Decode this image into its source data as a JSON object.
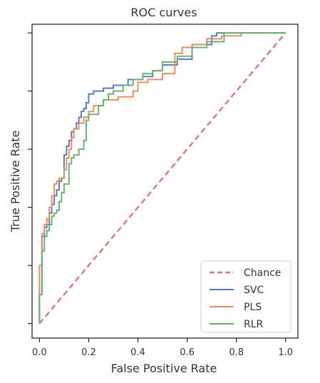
{
  "chart_data": {
    "type": "line",
    "title": "ROC curves",
    "xlabel": "False Positive Rate",
    "ylabel": "True Positive Rate",
    "xlim": [
      -0.03,
      1.05
    ],
    "ylim": [
      -0.05,
      1.03
    ],
    "x_ticks": [
      0.0,
      0.2,
      0.4,
      0.6,
      0.8,
      1.0
    ],
    "x_tick_labels": [
      "0.0",
      "0.2",
      "0.4",
      "0.6",
      "0.8",
      "1.0"
    ],
    "y_ticks": [
      0.0,
      0.2,
      0.4,
      0.6,
      0.8,
      1.0
    ],
    "y_tick_labels": [
      "",
      "",
      "",
      "",
      "",
      ""
    ],
    "grid": false,
    "legend_position": "bottom-right",
    "series": [
      {
        "name": "Chance",
        "color": "#d47a7a",
        "dashed": true,
        "x": [
          0,
          1
        ],
        "y": [
          0,
          1
        ]
      },
      {
        "name": "SVC",
        "color": "#5875b8",
        "dashed": false,
        "x": [
          0.0,
          0.0,
          0.01,
          0.01,
          0.02,
          0.02,
          0.03,
          0.03,
          0.04,
          0.04,
          0.05,
          0.05,
          0.06,
          0.06,
          0.07,
          0.07,
          0.08,
          0.08,
          0.09,
          0.09,
          0.1,
          0.1,
          0.11,
          0.11,
          0.12,
          0.12,
          0.13,
          0.13,
          0.14,
          0.14,
          0.15,
          0.15,
          0.16,
          0.16,
          0.17,
          0.17,
          0.18,
          0.18,
          0.19,
          0.19,
          0.2,
          0.2,
          0.22,
          0.22,
          0.26,
          0.26,
          0.3,
          0.3,
          0.36,
          0.36,
          0.42,
          0.42,
          0.46,
          0.46,
          0.5,
          0.5,
          0.56,
          0.56,
          0.62,
          0.62,
          0.7,
          0.7,
          0.72,
          0.72,
          1.0
        ],
        "y": [
          0.0,
          0.1,
          0.1,
          0.3,
          0.3,
          0.33,
          0.33,
          0.34,
          0.34,
          0.38,
          0.38,
          0.41,
          0.41,
          0.44,
          0.44,
          0.46,
          0.46,
          0.49,
          0.49,
          0.5,
          0.5,
          0.58,
          0.58,
          0.61,
          0.61,
          0.63,
          0.63,
          0.66,
          0.66,
          0.67,
          0.67,
          0.69,
          0.69,
          0.71,
          0.71,
          0.73,
          0.73,
          0.74,
          0.74,
          0.76,
          0.76,
          0.79,
          0.79,
          0.8,
          0.8,
          0.81,
          0.81,
          0.82,
          0.82,
          0.84,
          0.84,
          0.85,
          0.85,
          0.87,
          0.87,
          0.89,
          0.89,
          0.91,
          0.91,
          0.96,
          0.96,
          0.99,
          0.99,
          1.0,
          1.0
        ]
      },
      {
        "name": "PLS",
        "color": "#e08d62",
        "dashed": false,
        "x": [
          0.0,
          0.0,
          0.01,
          0.01,
          0.02,
          0.02,
          0.03,
          0.03,
          0.04,
          0.04,
          0.05,
          0.05,
          0.06,
          0.06,
          0.07,
          0.07,
          0.08,
          0.08,
          0.1,
          0.1,
          0.11,
          0.11,
          0.12,
          0.12,
          0.13,
          0.13,
          0.14,
          0.14,
          0.16,
          0.16,
          0.18,
          0.18,
          0.2,
          0.2,
          0.22,
          0.22,
          0.26,
          0.26,
          0.32,
          0.32,
          0.38,
          0.38,
          0.4,
          0.4,
          0.44,
          0.44,
          0.5,
          0.5,
          0.55,
          0.55,
          0.58,
          0.58,
          0.62,
          0.62,
          0.68,
          0.68,
          0.74,
          0.74,
          0.82,
          0.82,
          1.0
        ],
        "y": [
          0.0,
          0.2,
          0.2,
          0.31,
          0.31,
          0.34,
          0.34,
          0.36,
          0.36,
          0.4,
          0.4,
          0.44,
          0.44,
          0.48,
          0.48,
          0.49,
          0.49,
          0.5,
          0.5,
          0.53,
          0.53,
          0.57,
          0.57,
          0.6,
          0.6,
          0.64,
          0.64,
          0.67,
          0.67,
          0.69,
          0.69,
          0.71,
          0.71,
          0.73,
          0.73,
          0.75,
          0.75,
          0.77,
          0.77,
          0.78,
          0.78,
          0.8,
          0.8,
          0.83,
          0.83,
          0.84,
          0.84,
          0.86,
          0.86,
          0.93,
          0.93,
          0.95,
          0.95,
          0.96,
          0.96,
          0.98,
          0.98,
          0.99,
          0.99,
          1.0,
          1.0
        ]
      },
      {
        "name": "RLR",
        "color": "#6aab72",
        "dashed": false,
        "x": [
          0.0,
          0.0,
          0.01,
          0.01,
          0.02,
          0.02,
          0.03,
          0.03,
          0.04,
          0.04,
          0.05,
          0.05,
          0.06,
          0.06,
          0.07,
          0.07,
          0.08,
          0.08,
          0.09,
          0.09,
          0.1,
          0.1,
          0.12,
          0.12,
          0.13,
          0.13,
          0.14,
          0.14,
          0.16,
          0.16,
          0.18,
          0.18,
          0.19,
          0.19,
          0.2,
          0.2,
          0.24,
          0.24,
          0.26,
          0.26,
          0.28,
          0.28,
          0.3,
          0.3,
          0.34,
          0.34,
          0.38,
          0.38,
          0.42,
          0.42,
          0.46,
          0.46,
          0.5,
          0.5,
          0.56,
          0.56,
          0.62,
          0.62,
          0.68,
          0.68,
          0.75,
          0.75,
          1.0
        ],
        "y": [
          0.0,
          0.1,
          0.1,
          0.25,
          0.25,
          0.3,
          0.3,
          0.32,
          0.32,
          0.34,
          0.34,
          0.37,
          0.37,
          0.38,
          0.38,
          0.39,
          0.39,
          0.42,
          0.42,
          0.45,
          0.45,
          0.48,
          0.48,
          0.55,
          0.55,
          0.57,
          0.57,
          0.58,
          0.58,
          0.6,
          0.6,
          0.63,
          0.63,
          0.7,
          0.7,
          0.72,
          0.72,
          0.75,
          0.75,
          0.77,
          0.77,
          0.79,
          0.79,
          0.8,
          0.8,
          0.82,
          0.82,
          0.84,
          0.84,
          0.86,
          0.86,
          0.87,
          0.87,
          0.9,
          0.9,
          0.92,
          0.92,
          0.95,
          0.95,
          0.97,
          0.97,
          1.0,
          1.0
        ]
      }
    ]
  }
}
